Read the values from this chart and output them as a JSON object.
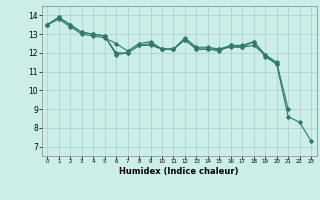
{
  "title": "",
  "xlabel": "Humidex (Indice chaleur)",
  "ylabel": "",
  "background_color": "#cceee8",
  "grid_color": "#aacccc",
  "line_color": "#2d7a6a",
  "xlim": [
    -0.5,
    23.5
  ],
  "ylim": [
    6.5,
    14.5
  ],
  "yticks": [
    7,
    8,
    9,
    10,
    11,
    12,
    13,
    14
  ],
  "xticks": [
    0,
    1,
    2,
    3,
    4,
    5,
    6,
    7,
    8,
    9,
    10,
    11,
    12,
    13,
    14,
    15,
    16,
    17,
    18,
    19,
    20,
    21,
    22,
    23
  ],
  "series": [
    [
      13.5,
      13.9,
      13.5,
      13.1,
      13.0,
      12.9,
      12.0,
      12.0,
      12.4,
      12.4,
      12.2,
      12.2,
      12.7,
      12.2,
      12.2,
      12.1,
      12.4,
      12.3,
      12.6,
      11.8,
      11.4,
      8.6,
      8.3,
      7.3
    ],
    [
      13.5,
      13.9,
      13.5,
      13.1,
      13.0,
      12.9,
      11.9,
      12.0,
      12.4,
      12.5,
      12.2,
      12.2,
      12.8,
      12.3,
      12.3,
      12.2,
      12.4,
      12.4,
      12.6,
      11.9,
      11.5,
      9.0,
      null,
      null
    ],
    [
      13.5,
      13.8,
      13.4,
      13.0,
      12.9,
      12.8,
      12.5,
      12.1,
      12.5,
      12.6,
      12.2,
      12.2,
      12.7,
      12.2,
      12.2,
      12.2,
      12.3,
      12.3,
      12.4,
      11.9,
      11.4,
      null,
      null,
      null
    ]
  ]
}
